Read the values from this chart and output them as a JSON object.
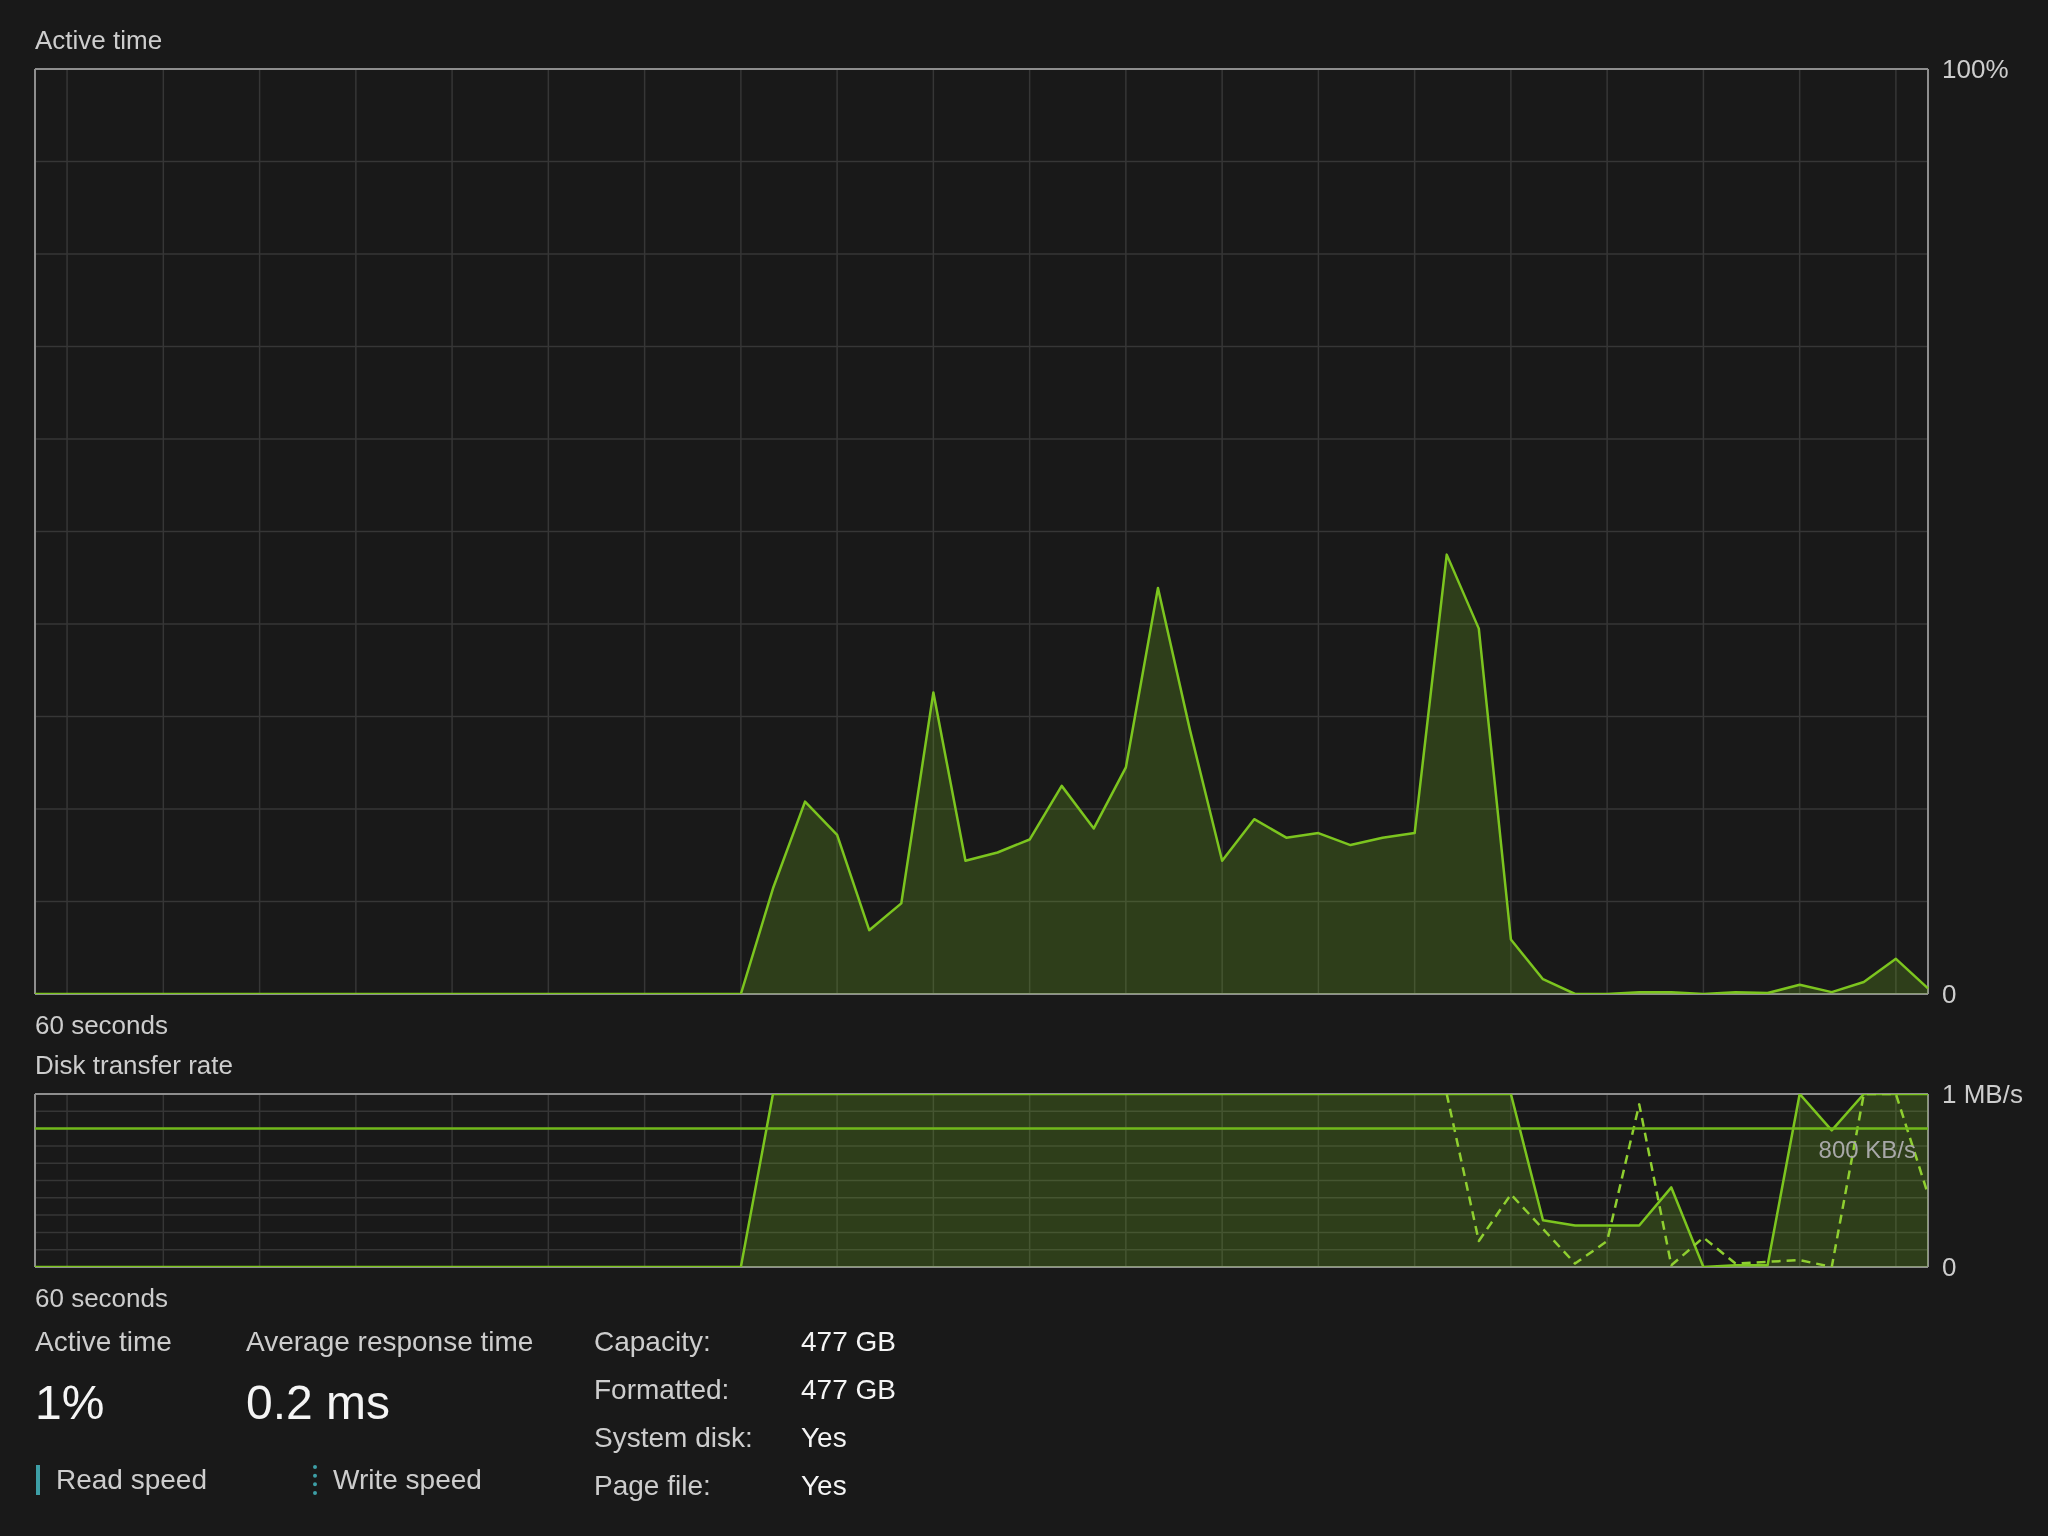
{
  "chart_data": [
    {
      "type": "area",
      "title": "Active time",
      "xlabel": "60 seconds",
      "categories": [
        null,
        null,
        null,
        null,
        null,
        null,
        null,
        null,
        null,
        null,
        null,
        null,
        null,
        null,
        null,
        null,
        null,
        null,
        null,
        null,
        null,
        null,
        null,
        null,
        null,
        null,
        null,
        null,
        null,
        null,
        null,
        null,
        null,
        null,
        null,
        null,
        null,
        null,
        null,
        null,
        null,
        null,
        null,
        null,
        null,
        null,
        null,
        null,
        null,
        null,
        null,
        null,
        null,
        null,
        null,
        null,
        null,
        null,
        null,
        null
      ],
      "series": [
        {
          "color": "#7cc51f",
          "values": [
            0,
            0,
            0,
            0,
            0,
            0,
            0,
            0,
            0,
            0,
            0,
            0,
            0,
            0,
            0,
            0,
            0,
            0,
            0,
            0,
            0,
            0,
            0,
            11.4,
            20.8,
            17.2,
            6.9,
            9.8,
            32.6,
            14.4,
            15.3,
            16.7,
            22.5,
            17.9,
            24.5,
            43.9,
            28.5,
            14.4,
            18.9,
            16.9,
            17.4,
            16.1,
            16.9,
            17.4,
            47.5,
            39.5,
            5.9,
            1.6,
            0,
            0,
            0.2,
            0.2,
            0,
            0.2,
            0.1,
            1.0,
            0.2,
            1.3,
            3.8,
            0.6
          ]
        }
      ],
      "ylim": [
        0,
        100
      ],
      "yticks": [
        0,
        {
          "value": 10,
          "label": null
        },
        {
          "value": 20,
          "label": null
        },
        {
          "value": 30,
          "label": null
        },
        {
          "value": 40,
          "label": null
        },
        {
          "value": 50,
          "label": null
        },
        {
          "value": 60,
          "label": null
        },
        {
          "value": 70,
          "label": null
        },
        {
          "value": 80,
          "label": null
        },
        {
          "value": 90,
          "label": null
        },
        {
          "value": 100,
          "label": "100%"
        }
      ],
      "grid": true
    },
    {
      "type": "area",
      "title": "Disk transfer rate",
      "xlabel": "60 seconds",
      "categories": [
        null,
        null,
        null,
        null,
        null,
        null,
        null,
        null,
        null,
        null,
        null,
        null,
        null,
        null,
        null,
        null,
        null,
        null,
        null,
        null,
        null,
        null,
        null,
        null,
        null,
        null,
        null,
        null,
        null,
        null,
        null,
        null,
        null,
        null,
        null,
        null,
        null,
        null,
        null,
        null,
        null,
        null,
        null,
        null,
        null,
        null,
        null,
        null,
        null,
        null,
        null,
        null,
        null,
        null,
        null,
        null,
        null,
        null,
        null,
        null
      ],
      "series": [
        {
          "color": "#7cc51f",
          "values": [
            0,
            0,
            0,
            0,
            0,
            0,
            0,
            0,
            0,
            0,
            0,
            0,
            0,
            0,
            0,
            0,
            0,
            0,
            0,
            0,
            0,
            0,
            0,
            1,
            1,
            1,
            1,
            1,
            1,
            1,
            1,
            1,
            1,
            1,
            1,
            1,
            1,
            1,
            1,
            1,
            1,
            1,
            1,
            1,
            1,
            1,
            1,
            0.27,
            0.24,
            0.24,
            0.24,
            0.46,
            0,
            0.01,
            0.01,
            1,
            0.79,
            1,
            1,
            1
          ]
        },
        {
          "type": "line",
          "color": "#8fcf30",
          "line_style": "dashed",
          "values": [
            null,
            null,
            null,
            null,
            null,
            null,
            null,
            null,
            null,
            null,
            null,
            null,
            null,
            null,
            null,
            null,
            null,
            null,
            null,
            null,
            null,
            null,
            null,
            null,
            null,
            null,
            null,
            null,
            null,
            null,
            null,
            null,
            null,
            null,
            null,
            null,
            null,
            null,
            null,
            null,
            null,
            null,
            null,
            null,
            1,
            0.15,
            0.42,
            0.22,
            0.02,
            0.15,
            0.94,
            0.01,
            0.17,
            0.02,
            0.03,
            0.04,
            0,
            1,
            1,
            0.42
          ]
        }
      ],
      "ylim": [
        0,
        1
      ],
      "yticks": [
        0,
        {
          "value": 0.1,
          "label": null
        },
        {
          "value": 0.2,
          "label": null
        },
        {
          "value": 0.3,
          "label": null
        },
        {
          "value": 0.4,
          "label": null
        },
        {
          "value": 0.5,
          "label": null
        },
        {
          "value": 0.6,
          "label": null
        },
        {
          "value": 0.7,
          "label": null
        },
        {
          "value": 0.8,
          "label": null
        },
        {
          "value": 0.9,
          "label": null
        },
        {
          "value": 1,
          "label": "1 MB/s"
        }
      ],
      "ref_lines": [
        {
          "axis": "y",
          "value": 0.8,
          "label": "800 KB/s",
          "color": "#71b81b"
        }
      ],
      "grid": true
    },
    {
      "type": "other",
      "annotations": [
        "Active time",
        "1%",
        "Average response time",
        "0.2 ms",
        "Capacity:",
        "477 GB",
        "Formatted:",
        "477 GB",
        "System disk:",
        "Yes",
        "Page file:",
        "Yes",
        "Read speed",
        "Write speed"
      ]
    }
  ]
}
